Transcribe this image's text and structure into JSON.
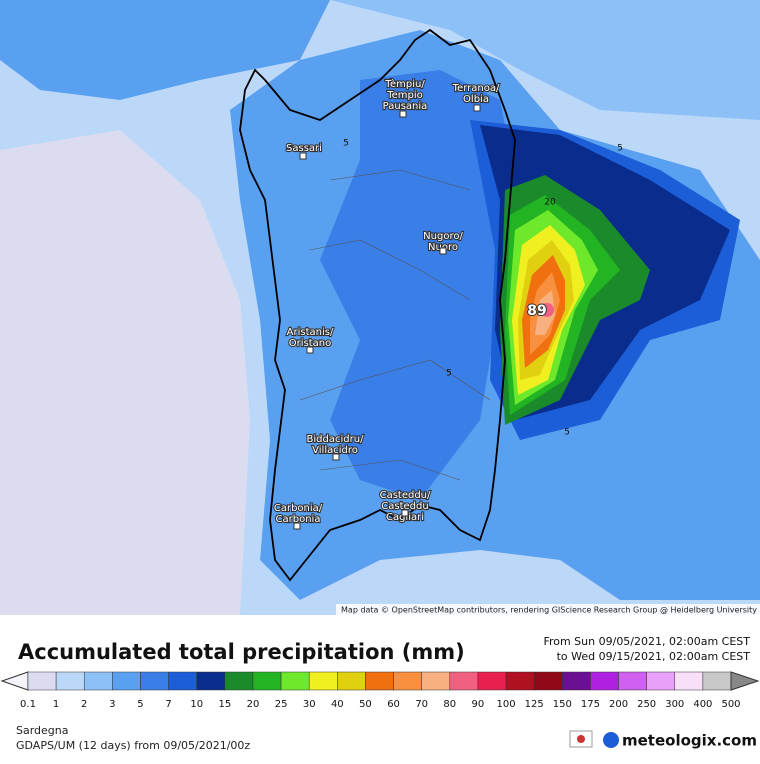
{
  "map": {
    "cities": [
      {
        "lines": [
          "Tèmpiu/",
          "Tempio",
          "Pausania"
        ]
      },
      {
        "lines": [
          "Terranoa/",
          "Olbia"
        ]
      },
      {
        "lines": [
          "Sassari"
        ]
      },
      {
        "lines": [
          "Nugoro/",
          "Nuoro"
        ]
      },
      {
        "lines": [
          "Aristanis/",
          "Oristano"
        ]
      },
      {
        "lines": [
          "Biddacidru/",
          "Villacidro"
        ]
      },
      {
        "lines": [
          "Casteddu/",
          "Casteddu",
          "Cagliari"
        ]
      },
      {
        "lines": [
          "Carbonia/",
          "Carbonia"
        ]
      }
    ],
    "contour_labels": [
      5,
      5,
      5,
      5,
      20
    ],
    "max_value": 89,
    "attribution": "Map data © OpenStreetMap contributors, rendering GIScience Research Group @ Heidelberg University"
  },
  "header": {
    "title": "Accumulated total precipitation (mm)",
    "from": "From Sun 09/05/2021, 02:00am CEST",
    "to": "to Wed 09/15/2021, 02:00am CEST"
  },
  "legend": {
    "thresholds": [
      0.1,
      1,
      2,
      3,
      5,
      7,
      10,
      15,
      20,
      25,
      30,
      40,
      50,
      60,
      70,
      80,
      90,
      100,
      125,
      150,
      175,
      200,
      250,
      300,
      400,
      500
    ],
    "colors": [
      "#dcdcf0",
      "#bcd8f8",
      "#8ec0f8",
      "#5aa0f0",
      "#3a7ee8",
      "#1c5ed8",
      "#0a2c8c",
      "#1a8a2a",
      "#22b422",
      "#6ee82a",
      "#f0f020",
      "#e0d010",
      "#f07010",
      "#f89040",
      "#f8b080",
      "#f06080",
      "#e82050",
      "#b01020",
      "#900818",
      "#6a1090",
      "#b020e0",
      "#d060f0",
      "#e8a0f8",
      "#f8e0f8",
      "#c8c8c8"
    ]
  },
  "footer": {
    "region": "Sardegna",
    "model": "GDAPS/UM (12 days) from 09/05/2021/00z",
    "brand": "meteologix.com"
  }
}
